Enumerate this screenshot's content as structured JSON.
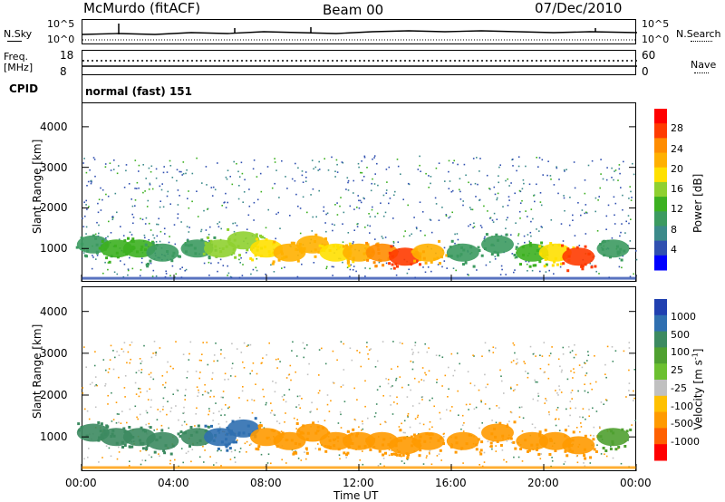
{
  "header": {
    "station": "McMurdo (fitACF)",
    "beam": "Beam 00",
    "date": "07/Dec/2010"
  },
  "noise": {
    "left_label": "N.Sky",
    "right_label": "N.Search",
    "ticks": [
      "10^5",
      "10^0"
    ]
  },
  "freq": {
    "left_label_1": "Freq.",
    "left_label_2": "[MHz]",
    "right_label": "Nave",
    "left_ticks": [
      "18",
      "8"
    ],
    "right_ticks": [
      "60",
      "0"
    ]
  },
  "cpid": {
    "label": "CPID",
    "value": "normal (fast) 151"
  },
  "chart_data": [
    {
      "type": "heatmap",
      "title": "Power",
      "ylabel": "Slant Range [km]",
      "xlabel": "",
      "ylim": [
        180,
        4600
      ],
      "yticks": [
        "4000",
        "3000",
        "2000",
        "1000"
      ],
      "ytick_values": [
        4000,
        3000,
        2000,
        1000
      ],
      "colorbar_label": "Power [dB]",
      "colorbar_ticks": [
        "28",
        "24",
        "20",
        "16",
        "12",
        "8",
        "4"
      ],
      "colorbar_colors": [
        "#ff0000",
        "#ff3b00",
        "#ff8c00",
        "#ffb000",
        "#ffe000",
        "#8fd030",
        "#3cb020",
        "#3c9a60",
        "#3c8a8a",
        "#3050b0",
        "#0000ff"
      ],
      "sample": {
        "x_hours": [
          0.5,
          1.5,
          2.5,
          3.5,
          5.0,
          6.0,
          7.0,
          8.0,
          9.0,
          10.0,
          11.0,
          12.0,
          13.0,
          14.0,
          15.0,
          16.5,
          18.0,
          19.5,
          20.5,
          21.5,
          23.0
        ],
        "range_km": [
          1100,
          1000,
          1000,
          900,
          1000,
          1000,
          1200,
          1000,
          900,
          1100,
          900,
          900,
          900,
          800,
          900,
          900,
          1100,
          900,
          900,
          800,
          1000
        ],
        "value": [
          10,
          12,
          12,
          8,
          10,
          14,
          16,
          18,
          20,
          22,
          18,
          20,
          24,
          26,
          20,
          8,
          10,
          12,
          18,
          26,
          8
        ]
      }
    },
    {
      "type": "heatmap",
      "title": "Velocity",
      "ylabel": "Slant Range [km]",
      "xlabel": "Time UT",
      "ylim": [
        180,
        4600
      ],
      "yticks": [
        "4000",
        "3000",
        "2000",
        "1000"
      ],
      "ytick_values": [
        4000,
        3000,
        2000,
        1000
      ],
      "xticks": [
        "00:00",
        "04:00",
        "08:00",
        "12:00",
        "16:00",
        "20:00",
        "00:00"
      ],
      "colorbar_label": "Velocity [m s",
      "colorbar_label_sup": "-1",
      "colorbar_label_end": "]",
      "colorbar_ticks": [
        "1000",
        "500",
        "100",
        "25",
        "-25",
        "-100",
        "-500",
        "-1000"
      ],
      "colorbar_colors": [
        "#2040b0",
        "#2f6fb0",
        "#3c8a60",
        "#4fa030",
        "#6cc030",
        "#c0c0c0",
        "#ffc000",
        "#ff9a00",
        "#ff6000",
        "#ff0000"
      ],
      "sample": {
        "x_hours": [
          0.5,
          1.5,
          2.5,
          3.5,
          5.0,
          6.0,
          7.0,
          8.0,
          9.0,
          10.0,
          11.0,
          12.0,
          13.0,
          14.0,
          15.0,
          16.5,
          18.0,
          19.5,
          20.5,
          21.5,
          23.0
        ],
        "range_km": [
          1100,
          1000,
          1000,
          900,
          1000,
          1000,
          1200,
          1000,
          900,
          1100,
          900,
          900,
          900,
          800,
          900,
          900,
          1100,
          900,
          900,
          800,
          1000
        ],
        "value": [
          200,
          300,
          250,
          150,
          200,
          400,
          500,
          -150,
          -200,
          -300,
          -250,
          -300,
          -400,
          -300,
          -250,
          -100,
          -200,
          -300,
          -350,
          -400,
          50
        ]
      }
    }
  ]
}
